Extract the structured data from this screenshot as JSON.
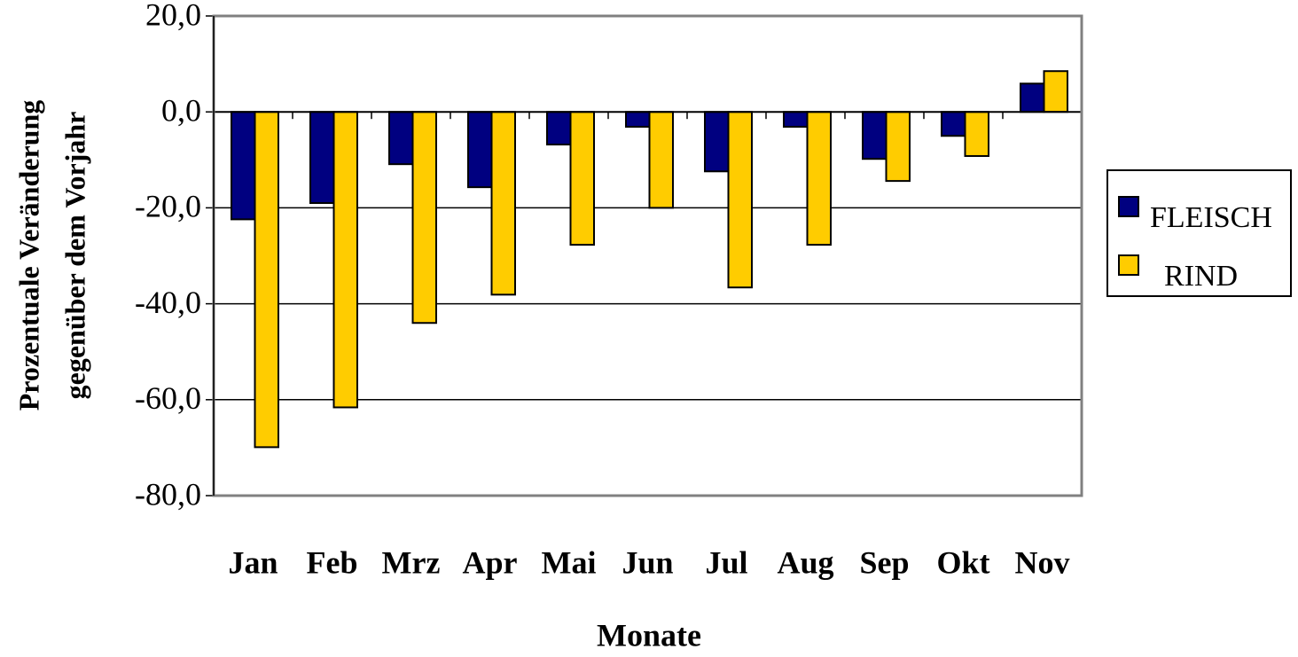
{
  "chart_data": {
    "type": "bar",
    "ylabel": [
      "Prozentuale Veränderung",
      "gegenüber dem Vorjahr"
    ],
    "xlabel": "Monate",
    "categories": [
      "Jan",
      "Feb",
      "Mrz",
      "Apr",
      "Mai",
      "Jun",
      "Jul",
      "Aug",
      "Sep",
      "Okt",
      "Nov"
    ],
    "series": [
      {
        "name": "FLEISCH",
        "color": "#000080",
        "values": [
          -22.4,
          -19.0,
          -10.9,
          -15.7,
          -6.8,
          -3.1,
          -12.4,
          -3.1,
          -9.8,
          -5.0,
          5.9
        ]
      },
      {
        "name": "RIND",
        "color": "#FFCC00",
        "values": [
          -69.9,
          -61.6,
          -44.0,
          -38.1,
          -27.7,
          -20.0,
          -36.6,
          -27.7,
          -14.4,
          -9.2,
          8.5
        ]
      }
    ],
    "ylim": [
      -80,
      20
    ],
    "yticks": [
      {
        "value": -80,
        "label": "-80,0"
      },
      {
        "value": -60,
        "label": "-60,0"
      },
      {
        "value": -40,
        "label": "-40,0"
      },
      {
        "value": -20,
        "label": "-20,0"
      },
      {
        "value": 0,
        "label": "0,0"
      },
      {
        "value": 20,
        "label": "20,0"
      }
    ],
    "grid": true,
    "legend": "right"
  }
}
